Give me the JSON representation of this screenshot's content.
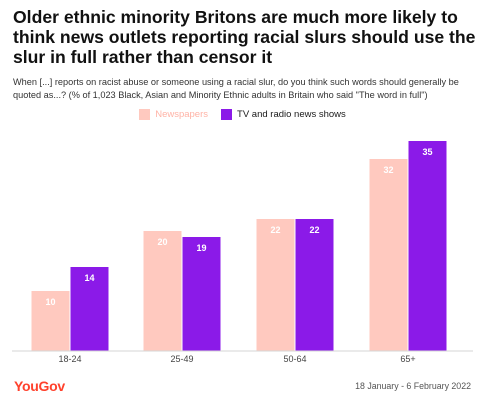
{
  "title": "Older ethnic minority Britons are much more likely to think news outlets reporting racial slurs should use the slur in full rather than censor it",
  "subtitle": "When [...] reports on racist abuse or someone using a racial slur, do you think such words should generally be quoted as...? (% of 1,023 Black, Asian and Minority Ethnic adults in Britain who said \"The word in full\")",
  "footer": {
    "brand": "YouGov",
    "date": "18 January - 6 February 2022"
  },
  "colors": {
    "newspapers": "#ffc9bf",
    "tv": "#8b1ae8",
    "brand": "#ff412c"
  },
  "chart_data": {
    "type": "bar",
    "categories": [
      "18-24",
      "25-49",
      "50-64",
      "65+"
    ],
    "series": [
      {
        "name": "Newspapers",
        "values": [
          10,
          20,
          22,
          32
        ],
        "color": "#ffc9bf",
        "label_color": "#ffffff"
      },
      {
        "name": "TV and radio news shows",
        "values": [
          14,
          19,
          22,
          35
        ],
        "color": "#8b1ae8",
        "label_color": "#ffffff"
      }
    ],
    "ylim": [
      0,
      35
    ],
    "grid": false,
    "legend": "top-center",
    "title": "",
    "xlabel": "",
    "ylabel": ""
  }
}
